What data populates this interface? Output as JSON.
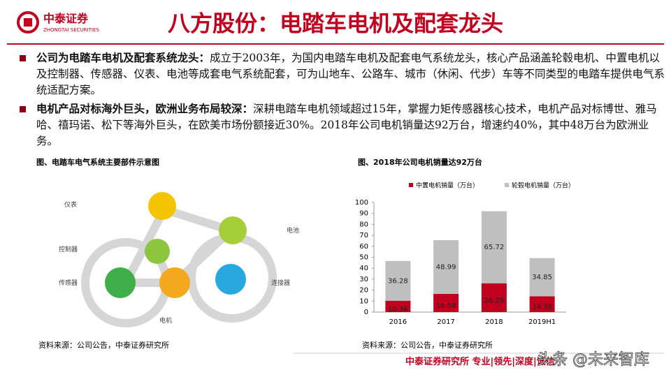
{
  "header": {
    "logo_name": "中泰证券",
    "logo_sub": "ZHONGTAI SECURITIES",
    "title": "八方股份：电踏车电机及配套龙头"
  },
  "bullets": [
    {
      "bold": "公司为电踏车电机及配套系统龙头：",
      "text": "成立于2003年，为国内电踏车电机及配套电气系统龙头，核心产品涵盖轮毂电机、中置电机以及控制器、传感器、仪表、电池等成套电气系统配套，可为山地车、公路车、城市（休闲、代步）车等不同类型的电踏车提供电气系统适配方案。"
    },
    {
      "bold": "电机产品对标海外巨头，欧洲业务布局较深：",
      "text": "深耕电踏车电机领域超过15年，掌握力矩传感器核心技术，电机产品对标博世、雅马哈、禧玛诺、松下等海外巨头，在欧美市场份额接近30%。2018年公司电机销量达92万台，增速约40%，其中48万台为欧洲业务。"
    }
  ],
  "figure": {
    "caption": "图、电踏车电气系统主要部件示意图",
    "labels": [
      "仪表",
      "控制器",
      "传感器",
      "电机",
      "电池",
      "连接器"
    ],
    "source": "资料来源：公司公告，中泰证券研究所"
  },
  "chart_data": {
    "type": "bar",
    "stacked": true,
    "title": "图、2018年公司电机销量达92万台",
    "categories": [
      "2016",
      "2017",
      "2018",
      "2019H1"
    ],
    "series": [
      {
        "name": "中置电机销量（万台）",
        "color": "#c0001e",
        "values": [
          10.36,
          16.58,
          26.29,
          14.38
        ]
      },
      {
        "name": "轮毂电机销量（万台）",
        "color": "#bfbfbf",
        "values": [
          36.28,
          48.99,
          65.72,
          34.85
        ]
      }
    ],
    "ylim": [
      0,
      100
    ],
    "yticks": [
      0,
      10,
      20,
      30,
      40,
      50,
      60,
      70,
      80,
      90,
      100
    ],
    "legend": "top",
    "source": "资料来源：公司公告，中泰证券研究所"
  },
  "footer": {
    "text": "中泰证券研究所 专业|领先|深度|诚信",
    "watermark": "头条 @未来智库"
  }
}
